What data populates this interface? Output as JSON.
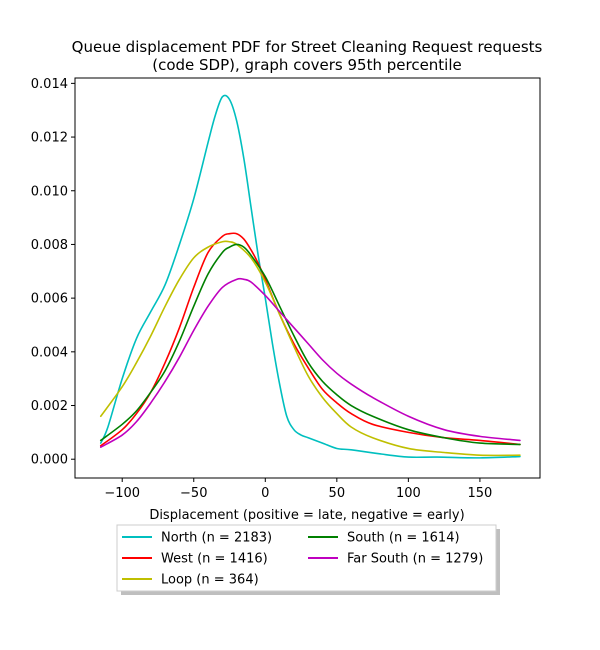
{
  "chart_data": {
    "type": "line",
    "title_line1": "Queue displacement PDF for Street Cleaning Request  requests",
    "title_line2": "(code SDP), graph covers 95th percentile",
    "xlabel": "Displacement (positive = late, negative = early)",
    "ylabel": "",
    "xlim": [
      -133,
      192
    ],
    "ylim": [
      -0.0007,
      0.0142
    ],
    "xticks": [
      -100,
      -50,
      0,
      50,
      100,
      150
    ],
    "xtick_labels": [
      "−100",
      "−50",
      "0",
      "50",
      "100",
      "150"
    ],
    "yticks": [
      0.0,
      0.002,
      0.004,
      0.006,
      0.008,
      0.01,
      0.012,
      0.014
    ],
    "ytick_labels": [
      "0.000",
      "0.002",
      "0.004",
      "0.006",
      "0.008",
      "0.010",
      "0.012",
      "0.014"
    ],
    "grid": false,
    "legend_placement": "below",
    "series": [
      {
        "name": "North (n = 2183)",
        "color": "#00bfbf",
        "x": [
          -115,
          -110,
          -100,
          -90,
          -80,
          -70,
          -60,
          -50,
          -40,
          -35,
          -30,
          -25,
          -20,
          -15,
          -10,
          -5,
          0,
          5,
          10,
          15,
          20,
          25,
          30,
          40,
          50,
          60,
          80,
          100,
          120,
          150,
          178
        ],
        "y": [
          0.0006,
          0.0012,
          0.003,
          0.0045,
          0.0055,
          0.0065,
          0.008,
          0.0097,
          0.0118,
          0.0128,
          0.0135,
          0.0134,
          0.0126,
          0.0112,
          0.0094,
          0.0076,
          0.006,
          0.0043,
          0.0028,
          0.0016,
          0.0011,
          0.0009,
          0.0008,
          0.0006,
          0.0004,
          0.00035,
          0.0002,
          8e-05,
          8e-05,
          5e-05,
          0.0001
        ]
      },
      {
        "name": "West (n = 1416)",
        "color": "#ff0000",
        "x": [
          -115,
          -100,
          -90,
          -80,
          -70,
          -60,
          -50,
          -40,
          -30,
          -25,
          -20,
          -15,
          -10,
          -5,
          0,
          10,
          20,
          30,
          40,
          50,
          60,
          75,
          100,
          125,
          150,
          178
        ],
        "y": [
          0.0005,
          0.0011,
          0.0017,
          0.0025,
          0.0036,
          0.0049,
          0.0064,
          0.0077,
          0.0083,
          0.0084,
          0.0084,
          0.0082,
          0.0078,
          0.0073,
          0.0067,
          0.0054,
          0.0043,
          0.0034,
          0.0026,
          0.0021,
          0.0017,
          0.0013,
          0.001,
          0.0008,
          0.0007,
          0.00055
        ]
      },
      {
        "name": "Loop (n = 364)",
        "color": "#bfbf00",
        "x": [
          -115,
          -100,
          -90,
          -80,
          -70,
          -60,
          -50,
          -40,
          -30,
          -25,
          -20,
          -10,
          0,
          10,
          20,
          30,
          40,
          50,
          60,
          75,
          100,
          125,
          150,
          178
        ],
        "y": [
          0.0016,
          0.0027,
          0.0036,
          0.0046,
          0.0057,
          0.0067,
          0.0075,
          0.0079,
          0.0081,
          0.0081,
          0.008,
          0.0075,
          0.0066,
          0.0054,
          0.0042,
          0.0031,
          0.0023,
          0.0017,
          0.0012,
          0.0008,
          0.0004,
          0.00025,
          0.00015,
          0.00015
        ]
      },
      {
        "name": "South (n = 1614)",
        "color": "#008000",
        "x": [
          -115,
          -100,
          -90,
          -80,
          -70,
          -60,
          -50,
          -40,
          -30,
          -25,
          -20,
          -15,
          -10,
          0,
          10,
          20,
          30,
          40,
          50,
          60,
          75,
          100,
          125,
          150,
          178
        ],
        "y": [
          0.0007,
          0.0013,
          0.0018,
          0.0025,
          0.0033,
          0.0044,
          0.0057,
          0.0069,
          0.0077,
          0.0079,
          0.008,
          0.0079,
          0.0076,
          0.0068,
          0.0057,
          0.0046,
          0.0036,
          0.0029,
          0.0024,
          0.002,
          0.0016,
          0.0011,
          0.0008,
          0.0006,
          0.00055
        ]
      },
      {
        "name": "Far South (n = 1279)",
        "color": "#bf00bf",
        "x": [
          -115,
          -100,
          -90,
          -80,
          -70,
          -60,
          -50,
          -40,
          -30,
          -20,
          -15,
          -10,
          0,
          10,
          20,
          30,
          40,
          50,
          60,
          75,
          100,
          125,
          150,
          178
        ],
        "y": [
          0.00045,
          0.0009,
          0.0014,
          0.0021,
          0.0029,
          0.0038,
          0.0048,
          0.0057,
          0.0064,
          0.0067,
          0.0067,
          0.0066,
          0.0061,
          0.0055,
          0.0049,
          0.0043,
          0.0037,
          0.0032,
          0.0028,
          0.0023,
          0.0016,
          0.0011,
          0.00085,
          0.0007
        ]
      }
    ]
  }
}
